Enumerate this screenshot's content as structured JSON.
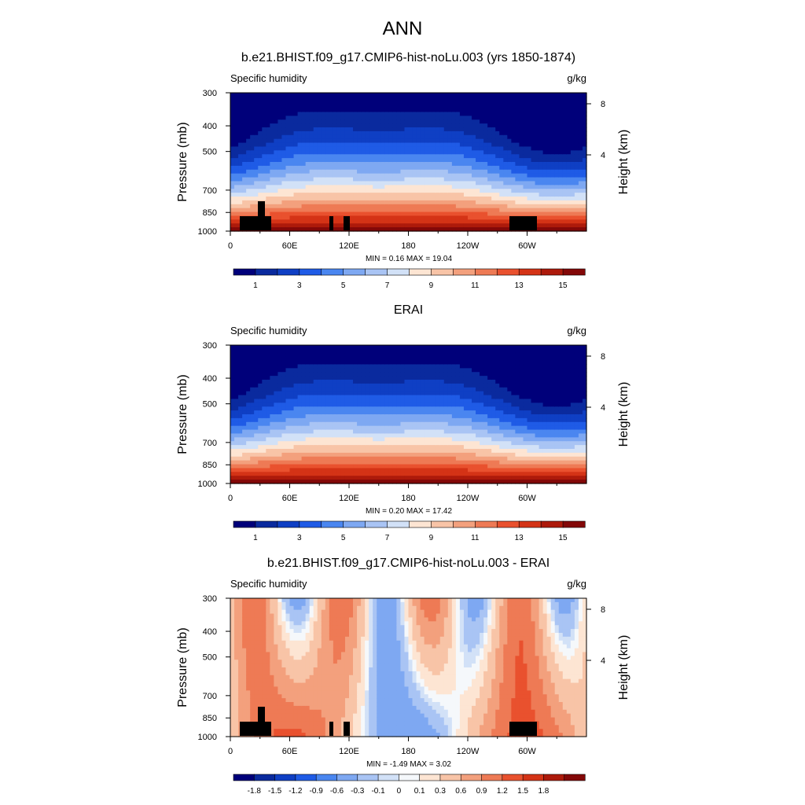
{
  "figure": {
    "title": "ANN"
  },
  "colorbars": {
    "abs": {
      "colors": [
        "#00007a",
        "#0a2a9e",
        "#0f3fc4",
        "#1f5be6",
        "#4a86f0",
        "#7ea8f2",
        "#a9c4f4",
        "#d2e1f7",
        "#fde5d3",
        "#f8c4a7",
        "#f3a07d",
        "#ee7a55",
        "#e9512e",
        "#d43316",
        "#ad1a0b",
        "#830808"
      ],
      "labels": [
        "1",
        "3",
        "5",
        "7",
        "9",
        "11",
        "13",
        "15"
      ]
    },
    "diff": {
      "colors": [
        "#00007a",
        "#0a2a9e",
        "#0f3fc4",
        "#1f5be6",
        "#4a86f0",
        "#7ea8f2",
        "#a9c4f4",
        "#d2e1f7",
        "#f5f8fb",
        "#fde5d3",
        "#f8c4a7",
        "#f3a07d",
        "#ee7a55",
        "#e9512e",
        "#d43316",
        "#ad1a0b",
        "#830808"
      ],
      "labels": [
        "-1.8",
        "-1.5",
        "-1.2",
        "-0.9",
        "-0.6",
        "-0.3",
        "-0.1",
        "0",
        "0.1",
        "0.3",
        "0.6",
        "0.9",
        "1.2",
        "1.5",
        "1.8"
      ]
    }
  },
  "chart_data": [
    {
      "type": "heatmap",
      "title": "b.e21.BHIST.f09_g17.CMIP6-hist-noLu.003 (yrs 1850-1874)",
      "left_label": "Specific humidity",
      "right_label": "g/kg",
      "ylabel": "Pressure (mb)",
      "y2label": "Height (km)",
      "x_ticks": [
        "0",
        "60E",
        "120E",
        "180",
        "120W",
        "60W"
      ],
      "x_tick_values": [
        0,
        60,
        120,
        180,
        240,
        300
      ],
      "xlim": [
        0,
        360
      ],
      "y_ticks": [
        "300",
        "400",
        "500",
        "700",
        "850",
        "1000"
      ],
      "y_tick_values": [
        300,
        400,
        500,
        700,
        850,
        1000
      ],
      "ylim": [
        1000,
        300
      ],
      "y_scale": "log",
      "y2_ticks": [
        "8",
        "4"
      ],
      "stats": {
        "min_label": "MIN =",
        "min": "0.16",
        "max_label": "MAX =",
        "max": "19.04"
      },
      "units": "g/kg",
      "colorbar": "abs"
    },
    {
      "type": "heatmap",
      "title": "ERAI",
      "left_label": "Specific humidity",
      "right_label": "g/kg",
      "ylabel": "Pressure (mb)",
      "y2label": "Height (km)",
      "x_ticks": [
        "0",
        "60E",
        "120E",
        "180",
        "120W",
        "60W"
      ],
      "x_tick_values": [
        0,
        60,
        120,
        180,
        240,
        300
      ],
      "xlim": [
        0,
        360
      ],
      "y_ticks": [
        "300",
        "400",
        "500",
        "700",
        "850",
        "1000"
      ],
      "y_tick_values": [
        300,
        400,
        500,
        700,
        850,
        1000
      ],
      "ylim": [
        1000,
        300
      ],
      "y_scale": "log",
      "y2_ticks": [
        "8",
        "4"
      ],
      "stats": {
        "min_label": "MIN =",
        "min": "0.20",
        "max_label": "MAX =",
        "max": "17.42"
      },
      "units": "g/kg",
      "colorbar": "abs"
    },
    {
      "type": "heatmap",
      "title": "b.e21.BHIST.f09_g17.CMIP6-hist-noLu.003 - ERAI",
      "left_label": "Specific humidity",
      "right_label": "g/kg",
      "ylabel": "Pressure (mb)",
      "y2label": "Height (km)",
      "x_ticks": [
        "0",
        "60E",
        "120E",
        "180",
        "120W",
        "60W"
      ],
      "x_tick_values": [
        0,
        60,
        120,
        180,
        240,
        300
      ],
      "xlim": [
        0,
        360
      ],
      "y_ticks": [
        "300",
        "400",
        "500",
        "700",
        "850",
        "1000"
      ],
      "y_tick_values": [
        300,
        400,
        500,
        700,
        850,
        1000
      ],
      "ylim": [
        1000,
        300
      ],
      "y_scale": "log",
      "y2_ticks": [
        "8",
        "4"
      ],
      "stats": {
        "min_label": "MIN =",
        "min": "-1.49",
        "max_label": "MAX =",
        "max": "3.02"
      },
      "units": "g/kg",
      "colorbar": "diff"
    }
  ]
}
